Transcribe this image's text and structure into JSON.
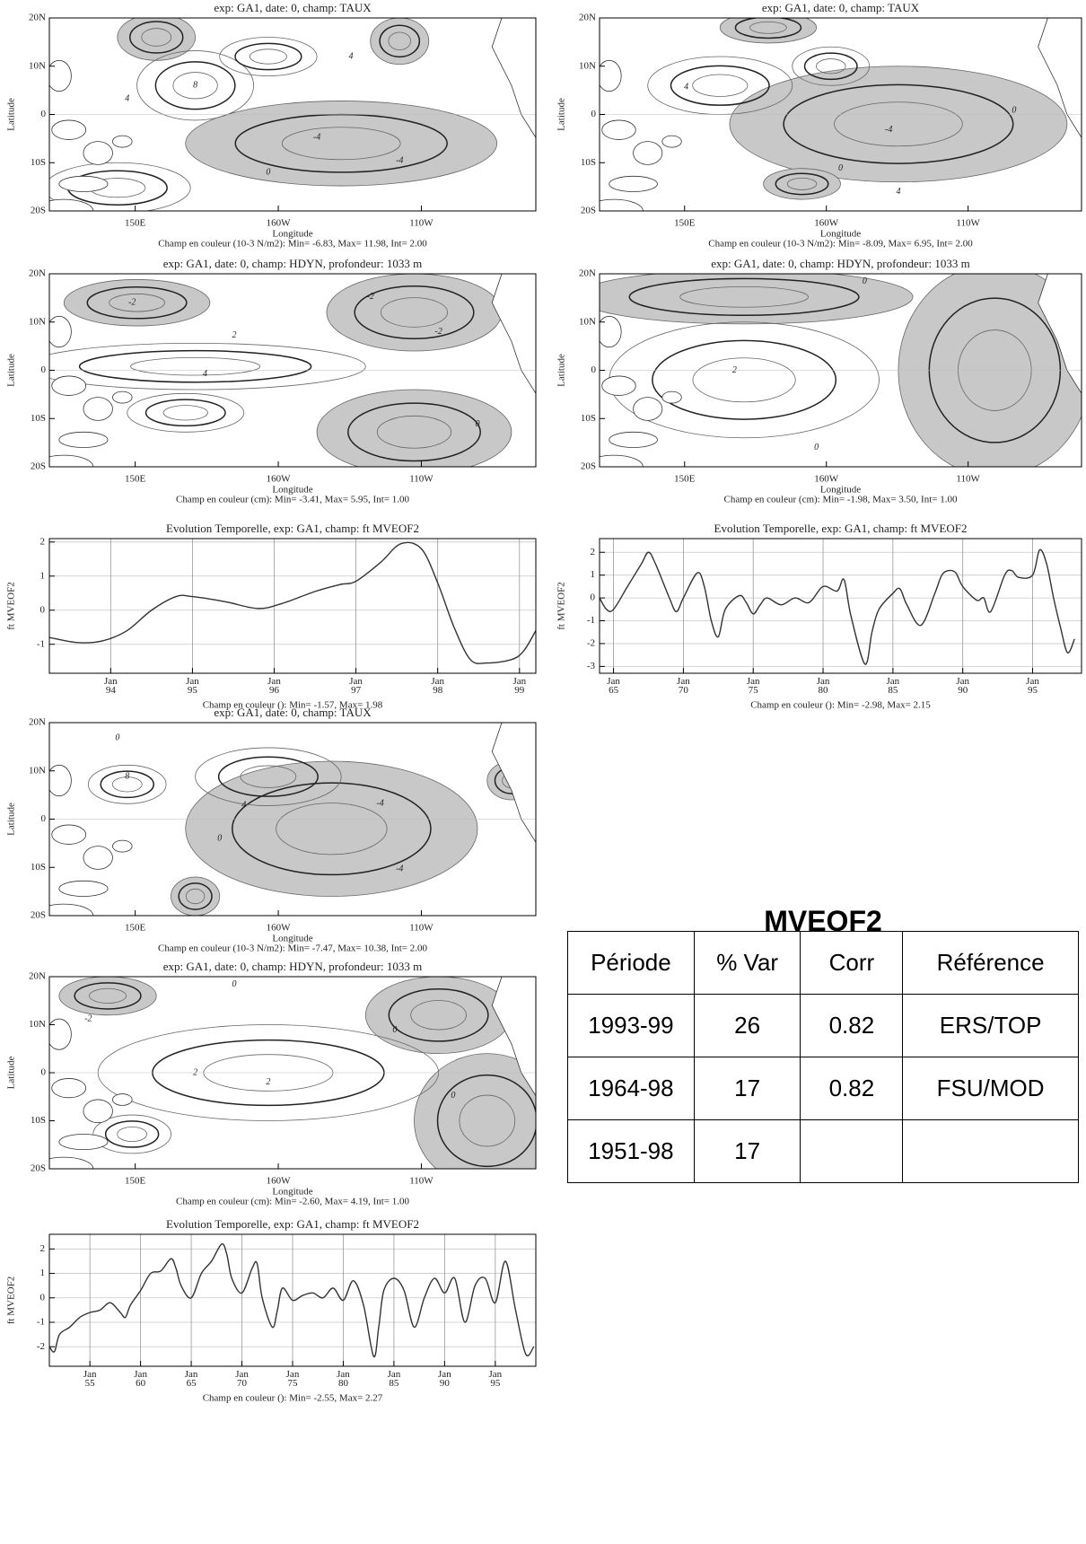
{
  "chart_data": [
    {
      "type": "contour-map",
      "title": "exp: GA1, date: 0, champ: TAUX",
      "xlabel": "Longitude",
      "ylabel": "Latitude",
      "xlim": [
        120,
        290
      ],
      "ylim": [
        -20,
        20
      ],
      "xticks": [
        {
          "value": 150,
          "label": "150E"
        },
        {
          "value": 200,
          "label": "160W"
        },
        {
          "value": 250,
          "label": "110W"
        }
      ],
      "yticks": [
        {
          "value": -20,
          "label": "20S"
        },
        {
          "value": -10,
          "label": "10S"
        },
        0,
        {
          "value": 10,
          "label": "10N"
        },
        {
          "value": 20,
          "label": "20N"
        }
      ],
      "contour_labels": [
        -4,
        4,
        8,
        0,
        -4,
        4
      ],
      "caption": "Champ en couleur (10-3 N/m2): Min= -6.83, Max= 11.98, Int= 2.00"
    },
    {
      "type": "contour-map",
      "title": "exp: GA1, date: 0, champ: TAUX",
      "xlabel": "Longitude",
      "ylabel": "Latitude",
      "xlim": [
        120,
        290
      ],
      "ylim": [
        -20,
        20
      ],
      "xticks": [
        {
          "value": 150,
          "label": "150E"
        },
        {
          "value": 200,
          "label": "160W"
        },
        {
          "value": 250,
          "label": "110W"
        }
      ],
      "yticks": [
        {
          "value": -20,
          "label": "20S"
        },
        {
          "value": -10,
          "label": "10S"
        },
        0,
        {
          "value": 10,
          "label": "10N"
        },
        {
          "value": 20,
          "label": "20N"
        }
      ],
      "contour_labels": [
        4,
        -4,
        0,
        0,
        4
      ],
      "caption": "Champ en couleur (10-3 N/m2): Min= -8.09, Max= 6.95, Int= 2.00"
    },
    {
      "type": "contour-map",
      "title": "exp: GA1, date: 0, champ: HDYN, profondeur: 1033 m",
      "xlabel": "Longitude",
      "ylabel": "Latitude",
      "xlim": [
        120,
        290
      ],
      "ylim": [
        -20,
        20
      ],
      "xticks": [
        {
          "value": 150,
          "label": "150E"
        },
        {
          "value": 200,
          "label": "160W"
        },
        {
          "value": 250,
          "label": "110W"
        }
      ],
      "yticks": [
        {
          "value": -20,
          "label": "20S"
        },
        {
          "value": -10,
          "label": "10S"
        },
        0,
        {
          "value": 10,
          "label": "10N"
        },
        {
          "value": 20,
          "label": "20N"
        }
      ],
      "contour_labels": [
        -2,
        -2,
        -2,
        2,
        4,
        0
      ],
      "caption": "Champ en couleur (cm): Min= -3.41, Max= 5.95, Int= 1.00"
    },
    {
      "type": "contour-map",
      "title": "exp: GA1, date: 0, champ: HDYN, profondeur: 1033 m",
      "xlabel": "Longitude",
      "ylabel": "Latitude",
      "xlim": [
        120,
        290
      ],
      "ylim": [
        -20,
        20
      ],
      "xticks": [
        {
          "value": 150,
          "label": "150E"
        },
        {
          "value": 200,
          "label": "160W"
        },
        {
          "value": 250,
          "label": "110W"
        }
      ],
      "yticks": [
        {
          "value": -20,
          "label": "20S"
        },
        {
          "value": -10,
          "label": "10S"
        },
        0,
        {
          "value": 10,
          "label": "10N"
        },
        {
          "value": 20,
          "label": "20N"
        }
      ],
      "contour_labels": [
        0,
        2,
        0
      ],
      "caption": "Champ en couleur (cm): Min= -1.98, Max= 3.50, Int= 1.00"
    },
    {
      "type": "line",
      "title": "Evolution Temporelle, exp: GA1, champ: ft MVEOF2",
      "ylabel": "ft MVEOF2",
      "color": "#333333",
      "grid": true,
      "xlim": [
        1993.25,
        1999.2
      ],
      "ylim": [
        -1.85,
        2.1
      ],
      "xticks": [
        {
          "value": 1994,
          "label": "Jan 94"
        },
        {
          "value": 1995,
          "label": "Jan 95"
        },
        {
          "value": 1996,
          "label": "Jan 96"
        },
        {
          "value": 1997,
          "label": "Jan 97"
        },
        {
          "value": 1998,
          "label": "Jan 98"
        },
        {
          "value": 1999,
          "label": "Jan 99"
        }
      ],
      "yticks": [
        -1,
        0,
        1,
        2
      ],
      "x": [
        1993.25,
        1993.6,
        1993.9,
        1994.2,
        1994.5,
        1994.8,
        1995.0,
        1995.4,
        1995.8,
        1996.1,
        1996.5,
        1996.8,
        1997.0,
        1997.3,
        1997.55,
        1997.8,
        1998.0,
        1998.2,
        1998.4,
        1998.6,
        1998.9,
        1999.05,
        1999.2
      ],
      "values": [
        -0.8,
        -0.95,
        -0.9,
        -0.6,
        0,
        0.4,
        0.4,
        0.25,
        0.05,
        0.2,
        0.55,
        0.75,
        0.85,
        1.4,
        1.95,
        1.8,
        0.8,
        -0.5,
        -1.45,
        -1.55,
        -1.45,
        -1.2,
        -0.6
      ],
      "caption": "Champ en couleur (): Min= -1.57, Max= 1.98"
    },
    {
      "type": "line",
      "title": "Evolution Temporelle, exp: GA1, champ: ft MVEOF2",
      "ylabel": "ft MVEOF2",
      "color": "#333333",
      "grid": true,
      "xlim": [
        1964,
        1998.5
      ],
      "ylim": [
        -3.3,
        2.6
      ],
      "xticks": [
        {
          "value": 1965,
          "label": "Jan 65"
        },
        {
          "value": 1970,
          "label": "Jan 70"
        },
        {
          "value": 1975,
          "label": "Jan 75"
        },
        {
          "value": 1980,
          "label": "Jan 80"
        },
        {
          "value": 1985,
          "label": "Jan 85"
        },
        {
          "value": 1990,
          "label": "Jan 90"
        },
        {
          "value": 1995,
          "label": "Jan 95"
        }
      ],
      "yticks": [
        -3,
        -2,
        -1,
        0,
        1,
        2
      ],
      "x": [
        1964,
        1964.5,
        1965,
        1966,
        1967,
        1967.5,
        1968,
        1969,
        1969.5,
        1970,
        1971,
        1971.5,
        1972,
        1972.5,
        1973,
        1974,
        1974.5,
        1975,
        1975.5,
        1976,
        1977,
        1978,
        1979,
        1980,
        1981,
        1981.5,
        1982,
        1983,
        1983.5,
        1984,
        1985,
        1985.5,
        1986,
        1987,
        1988,
        1988.5,
        1989,
        1989.5,
        1990,
        1991,
        1991.5,
        1992,
        1993,
        1993.5,
        1994,
        1995,
        1995.5,
        1996,
        1996.5,
        1997,
        1997.5,
        1998
      ],
      "values": [
        0,
        -0.5,
        -0.5,
        0.5,
        1.5,
        2.0,
        1.5,
        0,
        -0.6,
        0,
        1.1,
        0.5,
        -1.0,
        -1.7,
        -0.5,
        0.1,
        -0.2,
        -0.7,
        -0.3,
        0,
        -0.3,
        0,
        -0.2,
        0.5,
        0.3,
        0.8,
        -0.8,
        -2.9,
        -1.5,
        -0.5,
        0.2,
        0.4,
        -0.3,
        -1.2,
        0.2,
        1.0,
        1.2,
        1.1,
        0.5,
        -0.1,
        0,
        -0.6,
        1.0,
        1.2,
        0.9,
        1.0,
        2.1,
        1.5,
        0,
        -1.3,
        -2.4,
        -1.8
      ],
      "caption": "Champ en couleur (): Min= -2.98, Max= 2.15"
    },
    {
      "type": "contour-map",
      "title": "exp: GA1, date: 0, champ: TAUX",
      "xlabel": "Longitude",
      "ylabel": "Latitude",
      "xlim": [
        120,
        290
      ],
      "ylim": [
        -20,
        20
      ],
      "xticks": [
        {
          "value": 150,
          "label": "150E"
        },
        {
          "value": 200,
          "label": "160W"
        },
        {
          "value": 250,
          "label": "110W"
        }
      ],
      "yticks": [
        {
          "value": -20,
          "label": "20S"
        },
        {
          "value": -10,
          "label": "10S"
        },
        0,
        {
          "value": 10,
          "label": "10N"
        },
        {
          "value": 20,
          "label": "20N"
        }
      ],
      "contour_labels": [
        0,
        8,
        4,
        0,
        -4,
        -4
      ],
      "caption": "Champ en couleur (10-3 N/m2): Min= -7.47, Max= 10.38, Int= 2.00"
    },
    {
      "type": "contour-map",
      "title": "exp: GA1, date: 0, champ: HDYN, profondeur: 1033 m",
      "xlabel": "Longitude",
      "ylabel": "Latitude",
      "xlim": [
        120,
        290
      ],
      "ylim": [
        -20,
        20
      ],
      "xticks": [
        {
          "value": 150,
          "label": "150E"
        },
        {
          "value": 200,
          "label": "160W"
        },
        {
          "value": 250,
          "label": "110W"
        }
      ],
      "yticks": [
        {
          "value": -20,
          "label": "20S"
        },
        {
          "value": -10,
          "label": "10S"
        },
        0,
        {
          "value": 10,
          "label": "10N"
        },
        {
          "value": 20,
          "label": "20N"
        }
      ],
      "contour_labels": [
        0,
        -2,
        2,
        2,
        0,
        0
      ],
      "caption": "Champ en couleur (cm): Min= -2.60, Max= 4.19, Int= 1.00"
    },
    {
      "type": "line",
      "title": "Evolution Temporelle, exp: GA1, champ: ft MVEOF2",
      "ylabel": "ft MVEOF2",
      "color": "#333333",
      "grid": true,
      "xlim": [
        1951,
        1999
      ],
      "ylim": [
        -2.8,
        2.6
      ],
      "xticks": [
        {
          "value": 1955,
          "label": "Jan 55"
        },
        {
          "value": 1960,
          "label": "Jan 60"
        },
        {
          "value": 1965,
          "label": "Jan 65"
        },
        {
          "value": 1970,
          "label": "Jan 70"
        },
        {
          "value": 1975,
          "label": "Jan 75"
        },
        {
          "value": 1980,
          "label": "Jan 80"
        },
        {
          "value": 1985,
          "label": "Jan 85"
        },
        {
          "value": 1990,
          "label": "Jan 90"
        },
        {
          "value": 1995,
          "label": "Jan 95"
        }
      ],
      "yticks": [
        -2,
        -1,
        0,
        1,
        2
      ],
      "x": [
        1951,
        1951.5,
        1952,
        1953,
        1954,
        1955,
        1956,
        1957,
        1958,
        1958.5,
        1959,
        1960,
        1961,
        1962,
        1963,
        1963.5,
        1964,
        1965,
        1966,
        1967,
        1968,
        1968.5,
        1969,
        1970,
        1971,
        1971.5,
        1972,
        1973,
        1973.5,
        1974,
        1975,
        1976,
        1977,
        1978,
        1979,
        1980,
        1981,
        1982,
        1983,
        1983.5,
        1984,
        1985,
        1986,
        1987,
        1988,
        1989,
        1990,
        1991,
        1992,
        1993,
        1994,
        1995,
        1996,
        1997,
        1998,
        1998.8
      ],
      "values": [
        -2.0,
        -2.2,
        -1.5,
        -1.2,
        -0.8,
        -0.6,
        -0.5,
        -0.2,
        -0.6,
        -0.8,
        -0.3,
        0.3,
        1.0,
        1.1,
        1.6,
        1.2,
        0.5,
        0,
        1.0,
        1.5,
        2.2,
        1.8,
        0.8,
        0.2,
        1.2,
        1.4,
        0,
        -1.2,
        -0.5,
        0.4,
        -0.1,
        0.1,
        0.2,
        0,
        0.4,
        -0.1,
        0.7,
        -0.3,
        -2.4,
        -1.2,
        0.3,
        0.8,
        0.3,
        -1.2,
        0,
        0.8,
        0.2,
        0.8,
        -1.0,
        0.5,
        0.8,
        -0.2,
        1.5,
        -0.5,
        -2.3,
        -2.0
      ],
      "caption": "Champ en couleur (): Min= -2.55, Max= 2.27"
    }
  ],
  "heading": "MVEOF2",
  "table": {
    "header": [
      "Période",
      "% Var",
      "Corr",
      "Référence"
    ],
    "rows": [
      [
        "1993-99",
        26,
        0.82,
        "ERS/TOP"
      ],
      [
        "1964-98",
        17,
        0.82,
        "FSU/MOD"
      ],
      [
        "1951-98",
        17,
        null,
        null
      ]
    ]
  }
}
